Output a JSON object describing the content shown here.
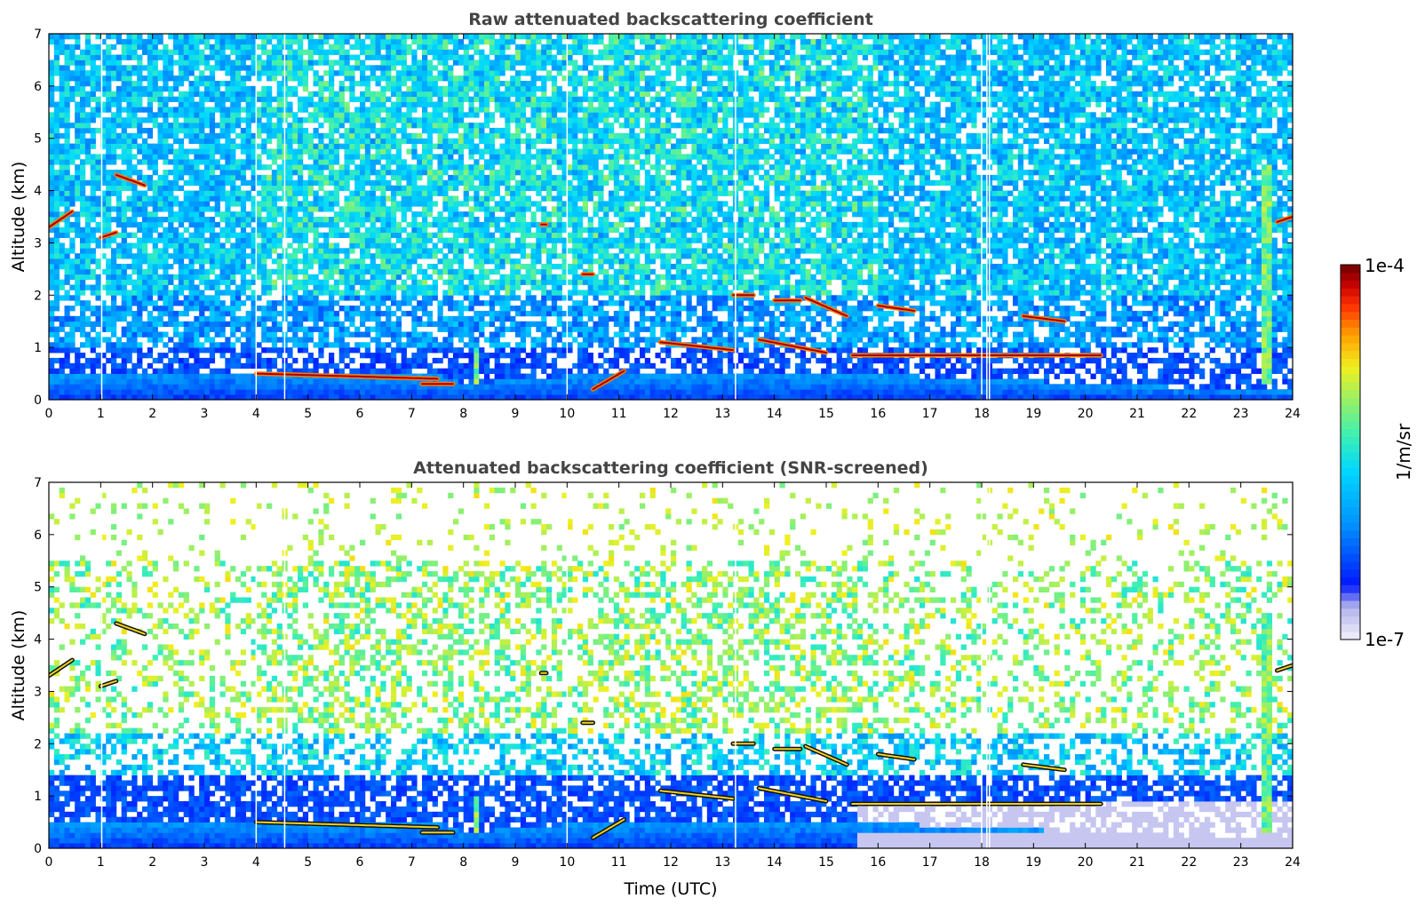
{
  "chart_data": [
    {
      "type": "heatmap",
      "title": "Raw attenuated backscattering coefficient",
      "xlabel": "",
      "ylabel": "Altitude (km)",
      "xlim": [
        0,
        24
      ],
      "ylim": [
        0,
        7
      ],
      "x_ticks": [
        "0",
        "1",
        "2",
        "3",
        "4",
        "5",
        "6",
        "7",
        "8",
        "9",
        "10",
        "11",
        "12",
        "13",
        "14",
        "15",
        "16",
        "17",
        "18",
        "19",
        "20",
        "21",
        "22",
        "23",
        "24"
      ],
      "y_ticks": [
        "0",
        "1",
        "2",
        "3",
        "4",
        "5",
        "6",
        "7"
      ],
      "data_gaps_utc": [
        1.02,
        4.0,
        4.55,
        10.0,
        13.25,
        18.0,
        18.1,
        18.15
      ],
      "features": [
        {
          "kind": "boundary_layer",
          "x": [
            0,
            3.5,
            4,
            7.6,
            8,
            10.5,
            12,
            15.6,
            24
          ],
          "top_km": [
            0.45,
            0.55,
            0.5,
            0.45,
            0.3,
            0.5,
            0.5,
            0.5,
            0.15
          ]
        },
        {
          "kind": "cloud",
          "x": [
            4.0,
            7.5
          ],
          "altitude_km": [
            0.5,
            0.4
          ]
        },
        {
          "kind": "cloud",
          "x": [
            7.2,
            7.8
          ],
          "altitude_km": [
            0.3,
            0.3
          ]
        },
        {
          "kind": "cloud",
          "x": [
            10.5,
            11.1
          ],
          "altitude_km": [
            0.2,
            0.55
          ]
        },
        {
          "kind": "cloud",
          "x": [
            11.8,
            13.2
          ],
          "altitude_km": [
            1.1,
            0.95
          ]
        },
        {
          "kind": "cloud",
          "x": [
            13.2,
            13.6
          ],
          "altitude_km": [
            2.0,
            2.0
          ]
        },
        {
          "kind": "cloud",
          "x": [
            13.7,
            15.0
          ],
          "altitude_km": [
            1.15,
            0.9
          ]
        },
        {
          "kind": "cloud",
          "x": [
            14.0,
            14.5
          ],
          "altitude_km": [
            1.9,
            1.9
          ]
        },
        {
          "kind": "cloud",
          "x": [
            14.6,
            15.4
          ],
          "altitude_km": [
            1.95,
            1.6
          ]
        },
        {
          "kind": "cloud",
          "x": [
            15.5,
            20.3
          ],
          "altitude_km": [
            0.85,
            0.85
          ]
        },
        {
          "kind": "cloud",
          "x": [
            16.0,
            16.7
          ],
          "altitude_km": [
            1.8,
            1.7
          ]
        },
        {
          "kind": "cloud",
          "x": [
            18.8,
            19.6
          ],
          "altitude_km": [
            1.6,
            1.5
          ]
        },
        {
          "kind": "cloud",
          "x": [
            0.0,
            0.45
          ],
          "altitude_km": [
            3.3,
            3.6
          ]
        },
        {
          "kind": "cloud",
          "x": [
            1.0,
            1.3
          ],
          "altitude_km": [
            3.1,
            3.2
          ]
        },
        {
          "kind": "cloud",
          "x": [
            1.3,
            1.85
          ],
          "altitude_km": [
            4.3,
            4.1
          ]
        },
        {
          "kind": "cloud",
          "x": [
            9.5,
            9.6
          ],
          "altitude_km": [
            3.35,
            3.35
          ]
        },
        {
          "kind": "cloud",
          "x": [
            10.3,
            10.5
          ],
          "altitude_km": [
            2.4,
            2.4
          ]
        },
        {
          "kind": "cloud",
          "x": [
            23.7,
            24.0
          ],
          "altitude_km": [
            3.4,
            3.5
          ]
        },
        {
          "kind": "plume",
          "x": [
            8.2,
            8.3
          ],
          "altitude_km": [
            0.0,
            1.0
          ]
        },
        {
          "kind": "plume",
          "x": [
            23.45,
            23.55
          ],
          "altitude_km": [
            0.3,
            4.5
          ]
        }
      ]
    },
    {
      "type": "heatmap",
      "title": "Attenuated backscattering coefficient (SNR-screened)",
      "xlabel": "Time (UTC)",
      "ylabel": "Altitude (km)",
      "xlim": [
        0,
        24
      ],
      "ylim": [
        0,
        7
      ],
      "x_ticks": [
        "0",
        "1",
        "2",
        "3",
        "4",
        "5",
        "6",
        "7",
        "8",
        "9",
        "10",
        "11",
        "12",
        "13",
        "14",
        "15",
        "16",
        "17",
        "18",
        "19",
        "20",
        "21",
        "22",
        "23",
        "24"
      ],
      "y_ticks": [
        "0",
        "1",
        "2",
        "3",
        "4",
        "5",
        "6",
        "7"
      ],
      "data_gaps_utc": [
        1.02,
        4.0,
        4.55,
        10.0,
        13.25,
        18.0,
        18.1,
        18.15
      ]
    }
  ],
  "colorbar": {
    "label": "1/m/sr",
    "min_label": "1e-7",
    "max_label": "1e-4",
    "scale": "log",
    "colors": [
      "#eaeaf8",
      "#c0c0ee",
      "#9a9aea",
      "#0018ff",
      "#0090ff",
      "#00d8ff",
      "#40f0b0",
      "#a0f060",
      "#f0f020",
      "#ffa000",
      "#ff3000",
      "#c00000",
      "#800000"
    ]
  }
}
